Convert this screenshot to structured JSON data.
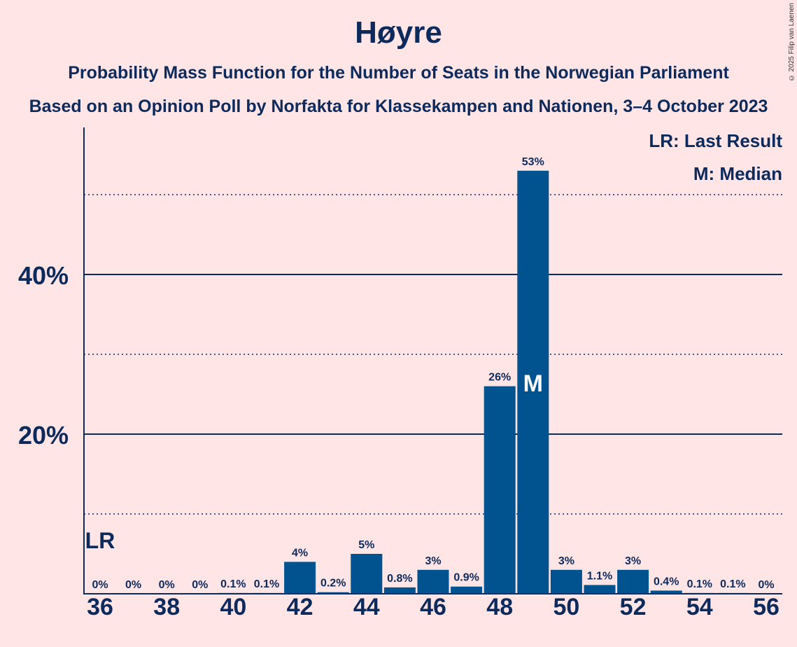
{
  "title": "Høyre",
  "subtitle_1": "Probability Mass Function for the Number of Seats in the Norwegian Parliament",
  "subtitle_2": "Based on an Opinion Poll by Norfakta for Klassekampen and Nationen, 3–4 October 2023",
  "copyright": "© 2025 Filip van Laenen",
  "legend": {
    "last_result": "LR: Last Result",
    "median": "M: Median"
  },
  "colors": {
    "background": "#FFE5E5",
    "bar": "#00538F",
    "text": "#0D2A5C"
  },
  "chart_data": {
    "type": "bar",
    "categories": [
      36,
      37,
      38,
      39,
      40,
      41,
      42,
      43,
      44,
      45,
      46,
      47,
      48,
      49,
      50,
      51,
      52,
      53,
      54,
      55,
      56
    ],
    "values": [
      0,
      0,
      0,
      0,
      0.1,
      0.1,
      4,
      0.2,
      5,
      0.8,
      3,
      0.9,
      26,
      53,
      3,
      1.1,
      3,
      0.4,
      0.1,
      0.1,
      0
    ],
    "value_labels": [
      "0%",
      "0%",
      "0%",
      "0%",
      "0.1%",
      "0.1%",
      "4%",
      "0.2%",
      "5%",
      "0.8%",
      "3%",
      "0.9%",
      "26%",
      "53%",
      "3%",
      "1.1%",
      "3%",
      "0.4%",
      "0.1%",
      "0.1%",
      "0%"
    ],
    "x_tick_labels": [
      "36",
      "38",
      "40",
      "42",
      "44",
      "46",
      "48",
      "50",
      "52",
      "54",
      "56"
    ],
    "y_tick_labels": [
      "20%",
      "40%"
    ],
    "y_ticks": [
      20,
      40
    ],
    "y_minor_gridlines": [
      10,
      30,
      50
    ],
    "ylim": [
      0,
      58
    ],
    "last_result": {
      "seat": 36,
      "label": "LR"
    },
    "median": {
      "seat": 49,
      "label": "M"
    },
    "legend_position": "top-right"
  }
}
